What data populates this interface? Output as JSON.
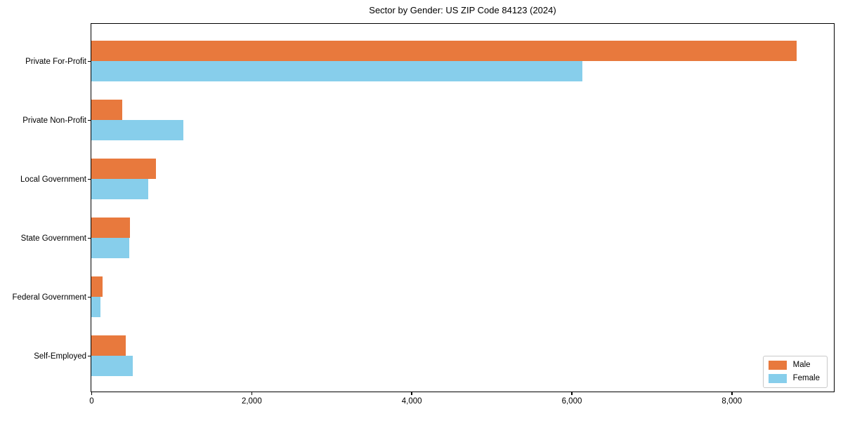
{
  "chart_data": {
    "type": "bar",
    "orientation": "horizontal",
    "title": "Sector by Gender: US ZIP Code 84123 (2024)",
    "categories": [
      "Private For-Profit",
      "Private Non-Profit",
      "Local Government",
      "State Government",
      "Federal Government",
      "Self-Employed"
    ],
    "series": [
      {
        "name": "Male",
        "color": "#e8793d",
        "values": [
          8810,
          390,
          810,
          480,
          140,
          430
        ]
      },
      {
        "name": "Female",
        "color": "#87ceeb",
        "values": [
          6140,
          1150,
          710,
          470,
          110,
          520
        ]
      }
    ],
    "xlabel": "",
    "ylabel": "",
    "xlim": [
      0,
      9270
    ],
    "xticks": [
      0,
      2000,
      4000,
      6000,
      8000
    ],
    "xtick_labels": [
      "0",
      "2,000",
      "4,000",
      "6,000",
      "8,000"
    ],
    "grid": false,
    "legend_position": "lower right",
    "background_color": "#ffffff",
    "spine_color": "#000000"
  }
}
